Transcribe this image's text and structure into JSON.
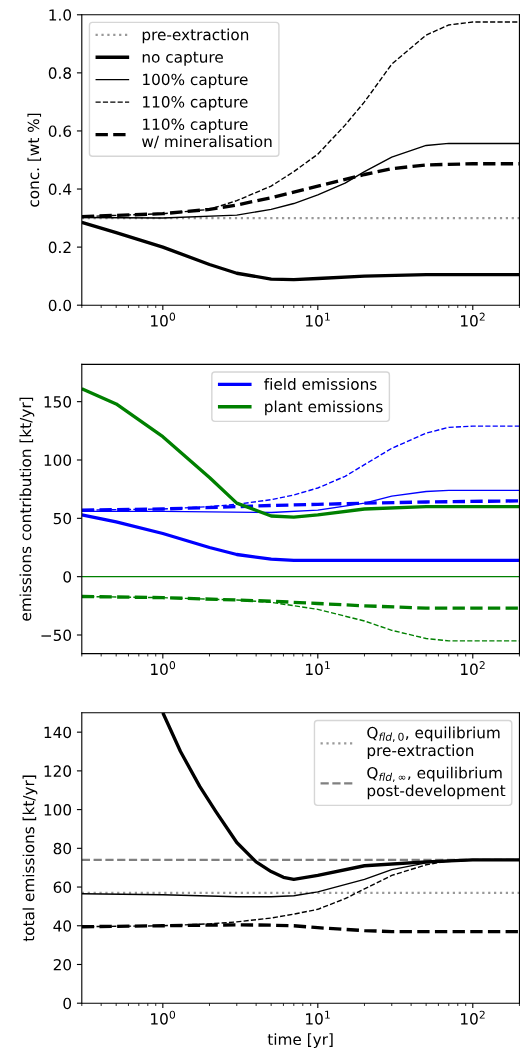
{
  "chart_data": [
    {
      "type": "line",
      "ylabel": "conc. [wt %]",
      "log": "x",
      "xlim": [
        0.3,
        200
      ],
      "ylim": [
        0.0,
        1.0
      ],
      "xticks": [
        {
          "value": 1,
          "label": "10$^{0}$"
        },
        {
          "value": 10,
          "label": "10$^{1}$"
        },
        {
          "value": 100,
          "label": "10$^{2}$"
        }
      ],
      "yticks": [
        {
          "value": 0,
          "label": "0.0"
        },
        0.2,
        0.4,
        0.6,
        0.8,
        {
          "value": 1,
          "label": "1.0"
        }
      ],
      "grid": false,
      "legend": "top left",
      "marker": "none",
      "ref_lines": [
        {
          "axis": "y",
          "value": 0.3,
          "label": "pre-extraction",
          "color": "#999999",
          "line_style": "dotted"
        }
      ],
      "series": [
        {
          "name": "no capture",
          "color": "#000000",
          "line_style": "solid",
          "x": [
            0.3,
            0.5,
            1,
            2,
            3,
            5,
            7,
            10,
            20,
            50,
            200
          ],
          "values": [
            0.285,
            0.25,
            0.2,
            0.14,
            0.11,
            0.09,
            0.088,
            0.092,
            0.1,
            0.105,
            0.105
          ]
        },
        {
          "name": "100% capture",
          "color": "#000000",
          "line_style": "solid",
          "x": [
            0.3,
            1,
            3,
            5,
            7,
            10,
            15,
            20,
            30,
            50,
            70,
            200
          ],
          "values": [
            0.302,
            0.3,
            0.31,
            0.33,
            0.35,
            0.38,
            0.42,
            0.46,
            0.51,
            0.55,
            0.557,
            0.557
          ]
        },
        {
          "name": "110% capture",
          "color": "#000000",
          "line_style": "dashed",
          "x": [
            0.3,
            1,
            2,
            3,
            5,
            7,
            10,
            15,
            20,
            30,
            50,
            70,
            100,
            200
          ],
          "values": [
            0.305,
            0.315,
            0.33,
            0.36,
            0.41,
            0.46,
            0.52,
            0.62,
            0.7,
            0.83,
            0.93,
            0.965,
            0.975,
            0.975
          ]
        },
        {
          "name": "110% capture\nw/ mineralisation",
          "color": "#000000",
          "line_style": "dashed",
          "x": [
            0.3,
            1,
            2,
            3,
            5,
            10,
            20,
            30,
            50,
            100,
            200
          ],
          "values": [
            0.305,
            0.315,
            0.33,
            0.345,
            0.37,
            0.41,
            0.45,
            0.47,
            0.483,
            0.487,
            0.487
          ]
        }
      ]
    },
    {
      "type": "line",
      "ylabel": "emissions contribution [kt/yr]",
      "log": "x",
      "xlim": [
        0.3,
        200
      ],
      "ylim": [
        -66,
        182
      ],
      "xticks": [
        {
          "value": 1,
          "label": "10$^{0}$"
        },
        {
          "value": 10,
          "label": "10$^{1}$"
        },
        {
          "value": 100,
          "label": "10$^{2}$"
        }
      ],
      "yticks": [
        {
          "value": -50,
          "label": "−50"
        },
        0,
        50,
        100,
        150
      ],
      "grid": false,
      "legend": "top",
      "marker": "none",
      "series": [
        {
          "name": "field emissions",
          "color": "#0000ff",
          "line_style": "solid",
          "x": [
            0.3,
            0.5,
            1,
            2,
            3,
            5,
            7,
            10,
            200
          ],
          "values": [
            53,
            47,
            37,
            25,
            19,
            15,
            14,
            14,
            14
          ]
        },
        {
          "color": "#0000ff",
          "line_style": "solid",
          "x": [
            0.3,
            1,
            5,
            10,
            20,
            30,
            50,
            70,
            200
          ],
          "values": [
            56,
            56,
            55,
            57,
            63,
            69,
            73,
            74,
            74
          ]
        },
        {
          "color": "#0000ff",
          "line_style": "dashed",
          "x": [
            0.3,
            1,
            2,
            3,
            5,
            7,
            10,
            15,
            20,
            30,
            50,
            70,
            100,
            200
          ],
          "values": [
            57,
            58,
            60,
            62,
            66,
            70,
            76,
            86,
            96,
            110,
            123,
            128,
            129,
            129
          ]
        },
        {
          "color": "#0000ff",
          "line_style": "dashed",
          "x": [
            0.3,
            1,
            3,
            5,
            10,
            20,
            50,
            200
          ],
          "values": [
            57,
            58,
            60,
            61,
            62,
            63,
            64,
            65
          ]
        },
        {
          "name": "plant emissions",
          "color": "#008000",
          "line_style": "solid",
          "x": [
            0.3,
            0.5,
            1,
            2,
            3,
            5,
            7,
            10,
            20,
            50,
            200
          ],
          "values": [
            161,
            148,
            120,
            85,
            63,
            52,
            51,
            53,
            58,
            60,
            60
          ]
        },
        {
          "color": "#008000",
          "line_style": "solid",
          "x": [
            0.3,
            200
          ],
          "values": [
            0,
            0
          ]
        },
        {
          "color": "#008000",
          "line_style": "dashed",
          "x": [
            0.3,
            1,
            3,
            5,
            10,
            20,
            30,
            50,
            70,
            200
          ],
          "values": [
            -17,
            -18,
            -20,
            -22,
            -28,
            -38,
            -46,
            -53,
            -55,
            -55
          ]
        },
        {
          "color": "#008000",
          "line_style": "dashed",
          "x": [
            0.3,
            1,
            3,
            5,
            10,
            20,
            50,
            200
          ],
          "values": [
            -17,
            -18,
            -20,
            -21,
            -23,
            -25,
            -27,
            -27
          ]
        }
      ]
    },
    {
      "type": "line",
      "xlabel": "time [yr]",
      "ylabel": "total emissions [kt/yr]",
      "log": "x",
      "xlim": [
        0.3,
        200
      ],
      "ylim": [
        0,
        150
      ],
      "xticks": [
        {
          "value": 1,
          "label": "10$^{0}$"
        },
        {
          "value": 10,
          "label": "10$^{1}$"
        },
        {
          "value": 100,
          "label": "10$^{2}$"
        }
      ],
      "yticks": [
        0,
        20,
        40,
        60,
        80,
        100,
        120,
        140
      ],
      "grid": false,
      "legend": "top right",
      "marker": "none",
      "ref_lines": [
        {
          "axis": "y",
          "value": 57,
          "label": "Q$_{fld,0}$, equilibrium\npre-extraction",
          "color": "#999999",
          "line_style": "dotted"
        },
        {
          "axis": "y",
          "value": 74,
          "label": "Q$_{fld,∞}$, equilibrium\npost-development",
          "color": "#808080",
          "line_style": "dashed"
        }
      ],
      "series": [
        {
          "color": "#000000",
          "line_style": "solid",
          "x": [
            1,
            1.3,
            1.73,
            2.2,
            3,
            4,
            5,
            6,
            7,
            10,
            20,
            50,
            100,
            200
          ],
          "values": [
            150,
            130,
            112,
            99,
            83,
            73,
            68,
            65,
            64,
            66,
            71,
            73,
            74,
            74
          ]
        },
        {
          "color": "#000000",
          "line_style": "solid",
          "x": [
            0.3,
            1,
            3,
            5,
            7,
            10,
            20,
            30,
            50,
            100,
            200
          ],
          "values": [
            56.5,
            56,
            55,
            55,
            55.5,
            57.5,
            64,
            69,
            72.5,
            74,
            74
          ]
        },
        {
          "color": "#000000",
          "line_style": "dashed",
          "x": [
            0.3,
            1,
            2,
            3,
            5,
            7,
            10,
            15,
            20,
            30,
            50,
            70,
            100,
            200
          ],
          "values": [
            39.5,
            40,
            41,
            42,
            44,
            46,
            48.5,
            54,
            59,
            66,
            71.5,
            73.5,
            74,
            74
          ]
        },
        {
          "color": "#000000",
          "line_style": "dashed",
          "x": [
            0.3,
            1,
            3,
            5,
            7,
            10,
            20,
            30,
            50,
            200
          ],
          "values": [
            39.5,
            40,
            40.5,
            40.3,
            40,
            39,
            37.5,
            37,
            37,
            37
          ]
        }
      ]
    }
  ]
}
